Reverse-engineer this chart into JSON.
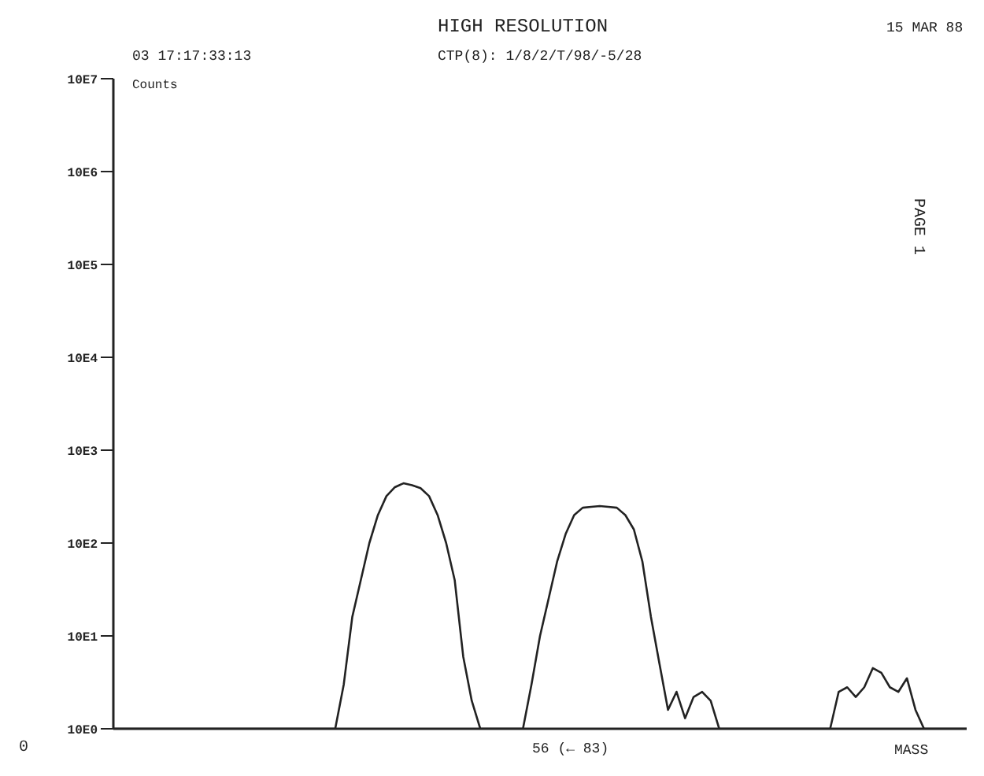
{
  "chart_data": {
    "type": "line",
    "title": "HIGH RESOLUTION",
    "xlabel": "MASS",
    "ylabel": "Counts",
    "annotations": [
      "15 MAR 88",
      "03 17:17:33:13",
      "CTP(8): 1/8/2/T/98/-5/28",
      "56 (← 83)",
      "0",
      "PAGE 1"
    ],
    "categories": [
      null,
      null,
      null,
      null,
      null,
      null,
      null,
      null,
      null,
      null,
      null,
      null,
      null,
      null,
      null,
      null,
      null,
      null,
      null,
      null,
      null,
      null,
      null,
      null,
      null,
      null,
      null,
      null,
      null,
      null,
      null,
      null,
      null,
      null,
      null,
      null,
      null,
      null,
      null,
      null,
      null,
      null,
      null,
      null,
      null,
      null,
      null,
      null,
      null,
      null,
      null,
      null,
      null,
      null,
      null,
      null,
      null,
      null,
      null,
      null,
      null,
      null,
      null,
      null,
      null,
      null,
      null,
      null,
      null,
      null,
      null,
      null,
      null,
      null,
      null,
      null,
      null,
      null,
      null,
      null,
      null,
      null,
      null,
      null,
      null,
      null,
      null,
      null,
      null,
      null,
      null,
      null,
      null,
      null,
      null,
      null,
      null,
      null,
      null,
      null,
      null
    ],
    "series": [
      {
        "color": "#222222",
        "values": [
          10,
          10,
          10,
          10,
          10,
          10,
          10,
          10,
          10,
          10,
          10,
          10,
          10,
          10,
          10,
          10,
          10,
          10,
          10,
          10,
          10,
          10,
          10,
          10,
          10,
          10,
          10,
          30,
          160,
          400,
          1000,
          2000,
          3200,
          4000,
          4400,
          4200,
          3900,
          3200,
          2000,
          1000,
          400,
          60,
          20,
          10,
          10,
          10,
          10,
          10,
          10,
          30,
          100,
          250,
          630,
          1250,
          2000,
          2400,
          2450,
          2500,
          2450,
          2400,
          2000,
          1400,
          630,
          160,
          50,
          16,
          25,
          13,
          22,
          25,
          20,
          10,
          10,
          10,
          10,
          10,
          10,
          10,
          10,
          10,
          10,
          10,
          10,
          10,
          10,
          25,
          28,
          22,
          28,
          45,
          40,
          28,
          25,
          35,
          16,
          10,
          10,
          10,
          10,
          10,
          10
        ]
      }
    ],
    "log": "y",
    "ylim": [
      10,
      100000000
    ],
    "yticks": [
      {
        "value": 10,
        "label": "10E0"
      },
      {
        "value": 100,
        "label": "10E1"
      },
      {
        "value": 1000,
        "label": "10E2"
      },
      {
        "value": 10000,
        "label": "10E3"
      },
      {
        "value": 100000,
        "label": "10E4"
      },
      {
        "value": 1000000,
        "label": "10E5"
      },
      {
        "value": 10000000,
        "label": "10E6"
      },
      {
        "value": 100000000,
        "label": "10E7"
      }
    ],
    "tick_labels": "y",
    "grid": false,
    "legend": false,
    "marker": "none",
    "line_style": "solid"
  }
}
